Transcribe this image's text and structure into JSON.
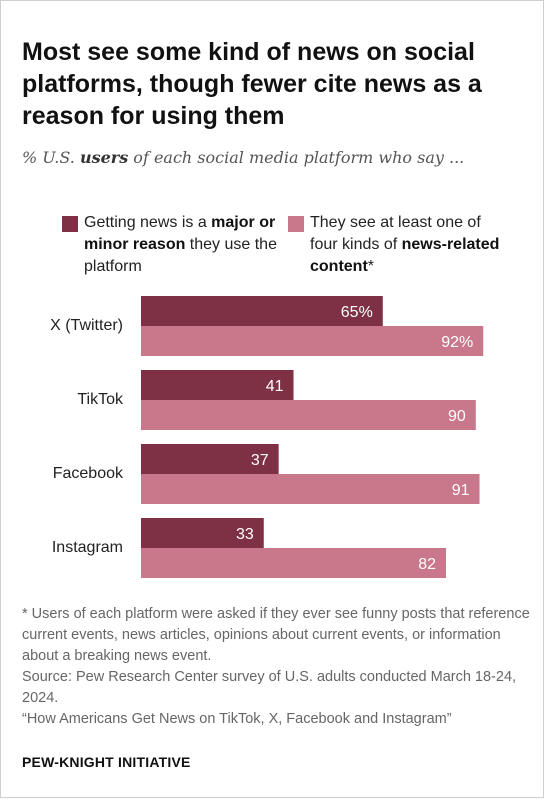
{
  "title": "Most see some kind of news on social platforms, though fewer cite news as a reason for using them",
  "subtitle": {
    "prefix": "% U.S. ",
    "emphasis": "users",
    "suffix": " of each social media platform who say ..."
  },
  "legend": {
    "a": {
      "pre": "Getting news is a ",
      "bold": "major or minor reason",
      "post": " they use the platform"
    },
    "b": {
      "pre": "They see at least one of four kinds of ",
      "bold": "news-related content",
      "post": "*"
    }
  },
  "colors": {
    "series_a": "#7e3044",
    "series_b": "#c8788a"
  },
  "chart_data": {
    "type": "bar",
    "orientation": "horizontal",
    "categories": [
      "X (Twitter)",
      "TikTok",
      "Facebook",
      "Instagram"
    ],
    "series": [
      {
        "name": "Getting news is a major or minor reason they use the platform",
        "values": [
          65,
          41,
          37,
          33
        ],
        "labels": [
          "65%",
          "41",
          "37",
          "33"
        ]
      },
      {
        "name": "They see at least one of four kinds of news-related content*",
        "values": [
          92,
          90,
          91,
          82
        ],
        "labels": [
          "92%",
          "90",
          "91",
          "82"
        ]
      }
    ],
    "xlim": [
      0,
      100
    ],
    "grid": false,
    "legend_position": "top"
  },
  "footnote": {
    "note": "* Users of each platform were asked if they ever see funny posts that reference current events, news articles, opinions about current events, or information about a breaking news event.",
    "source": "Source: Pew Research Center survey of U.S. adults conducted March 18-24, 2024.",
    "report": "“How Americans Get News on TikTok, X, Facebook and Instagram”"
  },
  "brand": "PEW-KNIGHT INITIATIVE"
}
